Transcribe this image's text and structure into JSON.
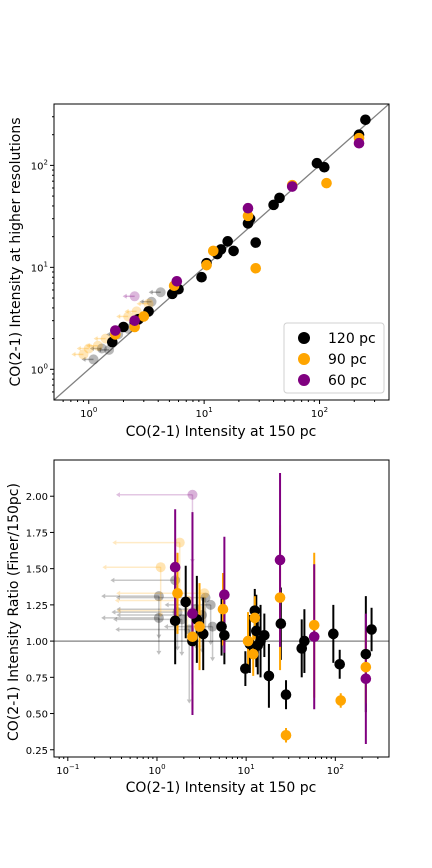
{
  "chart_data": [
    {
      "type": "scatter",
      "xlabel": "CO(2-1) Intensity at 150 pc",
      "ylabel": "CO(2-1) Intensity at higher resolutions",
      "xscale": "log",
      "yscale": "log",
      "xlim": [
        0.5,
        400
      ],
      "ylim": [
        0.5,
        400
      ],
      "x_tick_labels": [
        "10^0",
        "10^1",
        "10^2"
      ],
      "y_tick_labels": [
        "10^0",
        "10^1",
        "10^2"
      ],
      "one_to_one_line": true,
      "legend_position": "lower-right",
      "series": [
        {
          "name": "120 pc",
          "color": "#000000",
          "points": [
            [
              1.6,
              1.85
            ],
            [
              2.0,
              2.6
            ],
            [
              2.5,
              2.9
            ],
            [
              2.7,
              3.1
            ],
            [
              3.3,
              3.7
            ],
            [
              5.3,
              5.5
            ],
            [
              6.0,
              6.1
            ],
            [
              9.5,
              8.0
            ],
            [
              10.5,
              11.0
            ],
            [
              13.0,
              13.5
            ],
            [
              14.0,
              15.0
            ],
            [
              16.0,
              18.0
            ],
            [
              18.0,
              14.5
            ],
            [
              24.0,
              27.0
            ],
            [
              25.0,
              30.0
            ],
            [
              28.0,
              17.5
            ],
            [
              40.0,
              41.0
            ],
            [
              45.0,
              48.0
            ],
            [
              95.0,
              105.0
            ],
            [
              110.0,
              96.0
            ],
            [
              220.0,
              200.0
            ],
            [
              250.0,
              280.0
            ]
          ]
        },
        {
          "name": "90 pc",
          "color": "#ffa500",
          "points": [
            [
              1.7,
              2.2
            ],
            [
              2.5,
              2.6
            ],
            [
              3.0,
              3.3
            ],
            [
              5.5,
              6.6
            ],
            [
              10.5,
              10.5
            ],
            [
              12.0,
              14.5
            ],
            [
              24.0,
              32.0
            ],
            [
              28.0,
              9.8
            ],
            [
              58.0,
              64.0
            ],
            [
              115.0,
              67.0
            ],
            [
              220.0,
              185.0
            ]
          ]
        },
        {
          "name": "60 pc",
          "color": "#800080",
          "points": [
            [
              1.7,
              2.4
            ],
            [
              2.5,
              3.0
            ],
            [
              5.8,
              7.3
            ],
            [
              24.0,
              38.0
            ],
            [
              58.0,
              62.0
            ],
            [
              220.0,
              165.0
            ]
          ]
        }
      ],
      "upper_limits": [
        {
          "color": "#000000",
          "points": [
            [
              1.1,
              1.25
            ],
            [
              1.3,
              1.6
            ],
            [
              1.5,
              1.55
            ],
            [
              1.8,
              2.2
            ],
            [
              2.2,
              2.5
            ],
            [
              3.0,
              3.3
            ],
            [
              3.5,
              4.6
            ],
            [
              4.2,
              5.7
            ]
          ]
        },
        {
          "color": "#ffa500",
          "points": [
            [
              0.9,
              1.4
            ],
            [
              1.0,
              1.6
            ],
            [
              1.2,
              1.7
            ],
            [
              1.4,
              2.0
            ],
            [
              2.2,
              3.3
            ],
            [
              3.3,
              4.4
            ],
            [
              2.6,
              3.7
            ]
          ]
        },
        {
          "color": "#800080",
          "points": [
            [
              2.5,
              5.2
            ]
          ]
        }
      ]
    },
    {
      "type": "scatter",
      "xlabel": "CO(2-1) Intensity at 150 pc",
      "ylabel": "CO(2-1) Intensity Ratio (Finer/150pc)",
      "xscale": "log",
      "xlim": [
        0.07,
        400
      ],
      "ylim": [
        0.2,
        2.25
      ],
      "x_tick_labels": [
        "10^-1",
        "10^0",
        "10^1",
        "10^2"
      ],
      "y_ticks": [
        "0.25",
        "0.50",
        "0.75",
        "1.00",
        "1.25",
        "1.50",
        "1.75",
        "2.00"
      ],
      "reference_line_y": 1.0,
      "series": [
        {
          "name": "120 pc",
          "color": "#000000",
          "points": [
            [
              1.6,
              1.14,
              0.3
            ],
            [
              2.1,
              1.27,
              0.25
            ],
            [
              2.5,
              1.0,
              0.3
            ],
            [
              2.8,
              1.15,
              0.3
            ],
            [
              3.3,
              1.05,
              0.25
            ],
            [
              5.3,
              1.1,
              0.2
            ],
            [
              5.7,
              1.04,
              0.2
            ],
            [
              9.8,
              0.81,
              0.12
            ],
            [
              11.0,
              0.98,
              0.2
            ],
            [
              12.5,
              1.21,
              0.15
            ],
            [
              13.0,
              1.07,
              0.25
            ],
            [
              13.5,
              0.97,
              0.2
            ],
            [
              14.5,
              1.0,
              0.25
            ],
            [
              16.0,
              1.04,
              0.15
            ],
            [
              18.0,
              0.76,
              0.22
            ],
            [
              24.5,
              1.12,
              0.25
            ],
            [
              28.0,
              0.63,
              0.1
            ],
            [
              42.0,
              0.95,
              0.2
            ],
            [
              45.0,
              1.0,
              0.22
            ],
            [
              95.0,
              1.05,
              0.2
            ],
            [
              112.0,
              0.84,
              0.1
            ],
            [
              220.0,
              0.91,
              0.4
            ],
            [
              255.0,
              1.08,
              0.15
            ]
          ]
        },
        {
          "name": "90 pc",
          "color": "#ffa500",
          "points": [
            [
              1.7,
              1.33,
              0.28
            ],
            [
              2.5,
              1.03,
              0.5
            ],
            [
              3.0,
              1.1,
              0.3
            ],
            [
              5.5,
              1.22,
              0.25
            ],
            [
              10.5,
              1.0,
              0.2
            ],
            [
              12.0,
              0.91,
              0.15
            ],
            [
              12.5,
              1.16,
              0.15
            ],
            [
              24.0,
              1.3,
              0.5
            ],
            [
              28.0,
              0.35,
              0.05
            ],
            [
              58.0,
              1.11,
              0.5
            ],
            [
              115.0,
              0.59,
              0.05
            ],
            [
              220.0,
              0.82,
              0.25
            ]
          ]
        },
        {
          "name": "60 pc",
          "color": "#800080",
          "points": [
            [
              1.6,
              1.51,
              0.4
            ],
            [
              2.5,
              1.19,
              0.7
            ],
            [
              5.7,
              1.32,
              0.4
            ],
            [
              24.0,
              1.56,
              0.6
            ],
            [
              58.0,
              1.03,
              0.5
            ],
            [
              220.0,
              0.74,
              0.45
            ]
          ]
        }
      ],
      "upper_limits": [
        {
          "color": "#000000",
          "points": [
            [
              1.05,
              1.31
            ],
            [
              1.05,
              1.16
            ],
            [
              1.6,
              1.42
            ],
            [
              1.7,
              1.2
            ],
            [
              1.9,
              1.15
            ],
            [
              2.3,
              1.08
            ],
            [
              2.7,
              1.22
            ],
            [
              3.5,
              1.3
            ],
            [
              4.0,
              1.25
            ],
            [
              4.2,
              1.1
            ],
            [
              3.2,
              1.18
            ]
          ]
        },
        {
          "color": "#ffa500",
          "points": [
            [
              1.1,
              1.51
            ],
            [
              1.8,
              1.68
            ],
            [
              3.4,
              1.33
            ],
            [
              3.0,
              1.21
            ],
            [
              2.2,
              1.28
            ]
          ]
        },
        {
          "color": "#800080",
          "points": [
            [
              2.5,
              2.01
            ]
          ]
        }
      ]
    }
  ]
}
